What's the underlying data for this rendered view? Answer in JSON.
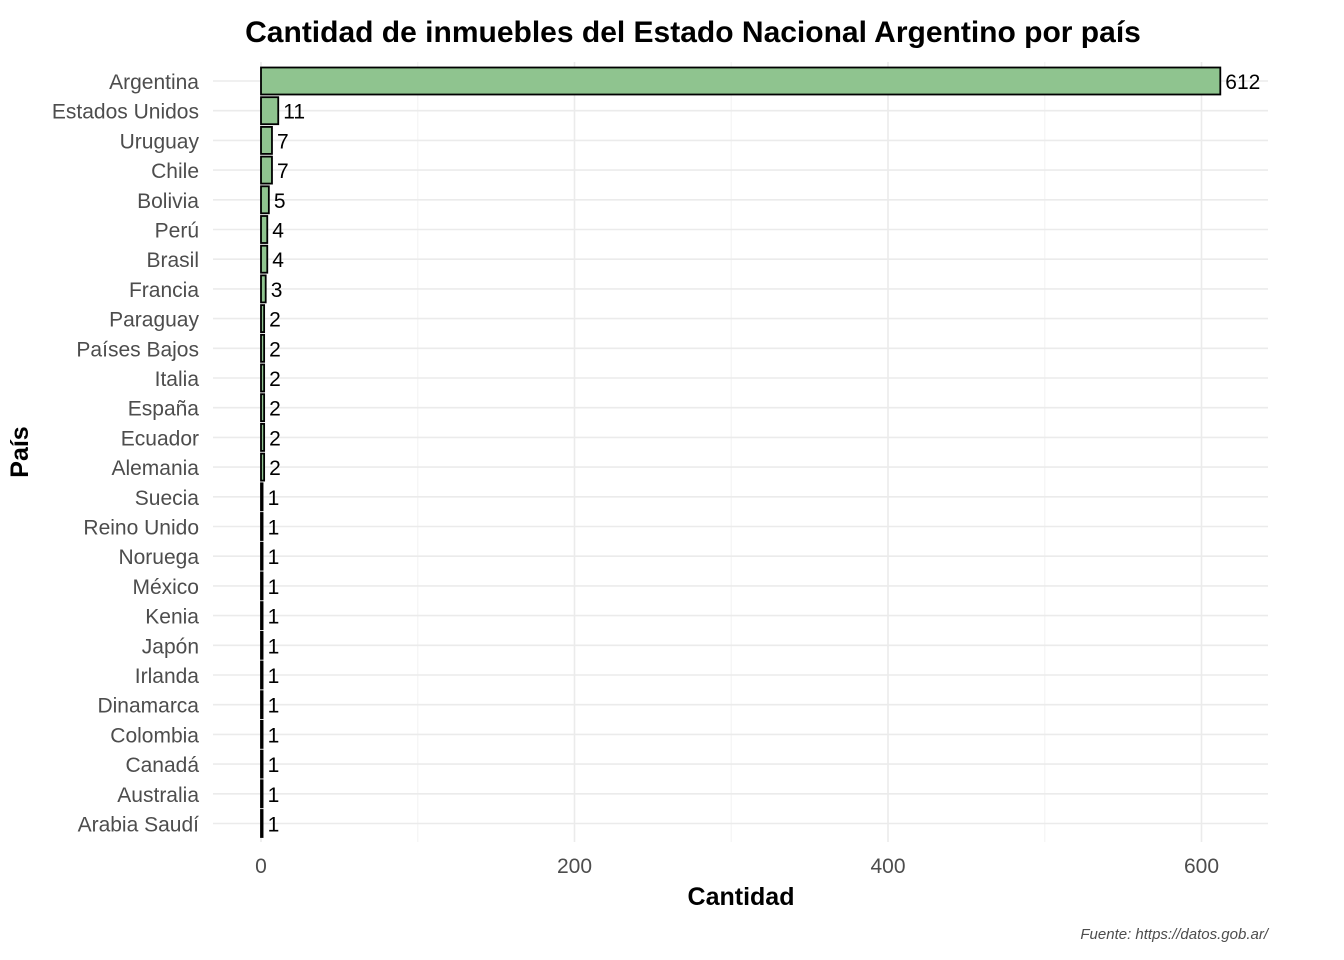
{
  "chart_data": {
    "type": "bar",
    "orientation": "horizontal",
    "title": "Cantidad de inmuebles del Estado Nacional Argentino por país",
    "xlabel": "Cantidad",
    "ylabel": "País",
    "caption": "Fuente: https://datos.gob.ar/",
    "xlim": [
      0,
      640
    ],
    "xticks": [
      0,
      200,
      400,
      600
    ],
    "grid": true,
    "categories": [
      "Argentina",
      "Estados Unidos",
      "Uruguay",
      "Chile",
      "Bolivia",
      "Perú",
      "Brasil",
      "Francia",
      "Paraguay",
      "Países Bajos",
      "Italia",
      "España",
      "Ecuador",
      "Alemania",
      "Suecia",
      "Reino Unido",
      "Noruega",
      "México",
      "Kenia",
      "Japón",
      "Irlanda",
      "Dinamarca",
      "Colombia",
      "Canadá",
      "Australia",
      "Arabia Saudí"
    ],
    "values": [
      612,
      11,
      7,
      7,
      5,
      4,
      4,
      3,
      2,
      2,
      2,
      2,
      2,
      2,
      1,
      1,
      1,
      1,
      1,
      1,
      1,
      1,
      1,
      1,
      1,
      1
    ],
    "colors": {
      "bar_fill": "#8fc48f",
      "bar_stroke": "#000000",
      "grid_major": "#ebebeb",
      "grid_minor": "#f4f4f4",
      "axis_text": "#4d4d4d",
      "text": "#000000"
    }
  }
}
